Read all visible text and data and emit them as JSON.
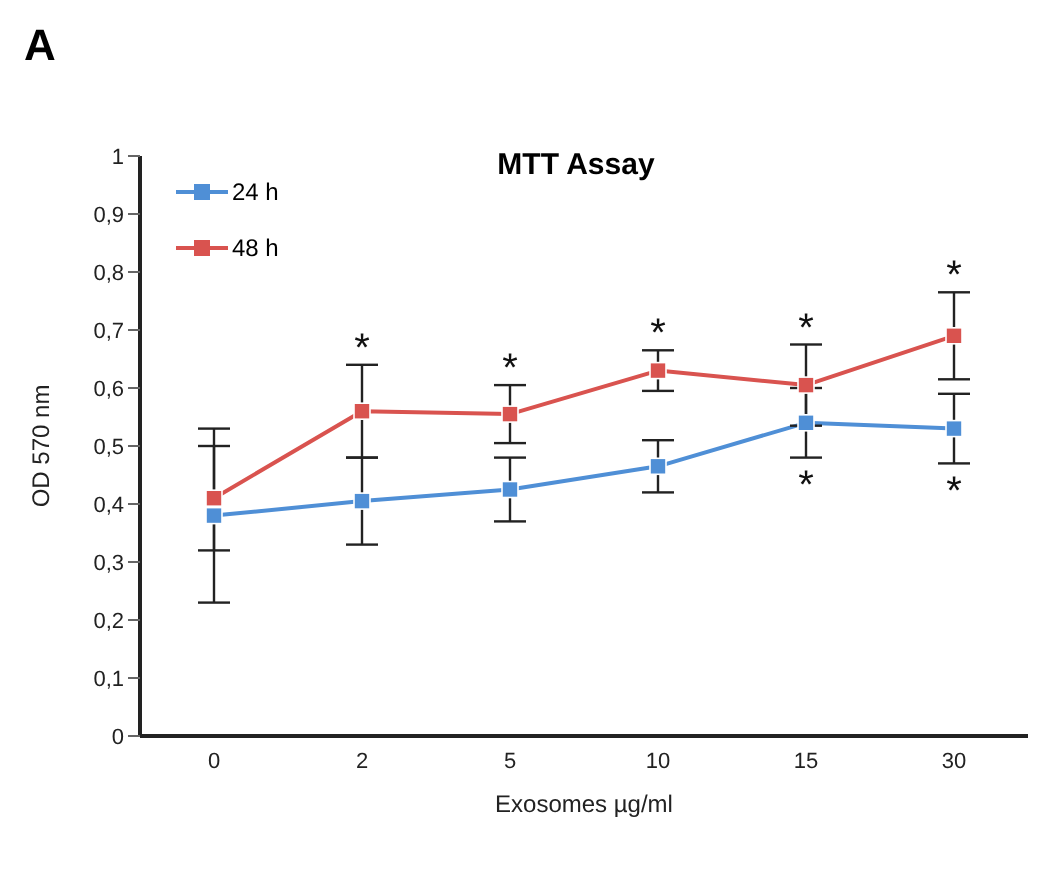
{
  "chart_data": {
    "type": "line",
    "title": "MTT Assay",
    "xlabel": "Exosomes µg/ml",
    "ylabel": "OD 570 nm",
    "categories": [
      "0",
      "2",
      "5",
      "10",
      "15",
      "30"
    ],
    "series": [
      {
        "name": "24 h",
        "color": "#4f8fd6",
        "values": [
          0.38,
          0.405,
          0.425,
          0.465,
          0.54,
          0.53
        ],
        "errors": [
          0.15,
          0.075,
          0.055,
          0.045,
          0.06,
          0.06
        ]
      },
      {
        "name": "48 h",
        "color": "#d9534f",
        "values": [
          0.41,
          0.56,
          0.555,
          0.63,
          0.605,
          0.69
        ],
        "errors": [
          0.09,
          0.08,
          0.05,
          0.035,
          0.07,
          0.075
        ]
      }
    ],
    "ylim": [
      0,
      1
    ],
    "yticks": [
      0,
      {
        "value": 0.1,
        "label": "0,1"
      },
      {
        "value": 0.2,
        "label": "0,2"
      },
      {
        "value": 0.3,
        "label": "0,3"
      },
      {
        "value": 0.4,
        "label": "0,4"
      },
      {
        "value": 0.5,
        "label": "0,5"
      },
      {
        "value": 0.6,
        "label": "0,6"
      },
      {
        "value": 0.7,
        "label": "0,7"
      },
      {
        "value": 0.8,
        "label": "0,8"
      },
      {
        "value": 0.9,
        "label": "0,9"
      },
      1
    ],
    "annotations": [
      "A",
      {
        "text": "*",
        "x": "2",
        "y": 0.56
      },
      {
        "text": "*",
        "x": "5",
        "y": 0.555
      },
      {
        "text": "*",
        "x": "10",
        "y": 0.63
      },
      {
        "text": "*",
        "x": "15",
        "y": 0.605
      },
      {
        "text": "*",
        "x": "30",
        "y": 0.69
      },
      {
        "text": "*",
        "x": "15",
        "y": 0.54
      },
      {
        "text": "*",
        "x": "30",
        "y": 0.53
      }
    ],
    "legend": "top left",
    "marker": "square",
    "line_style": "solid",
    "grid": false
  }
}
